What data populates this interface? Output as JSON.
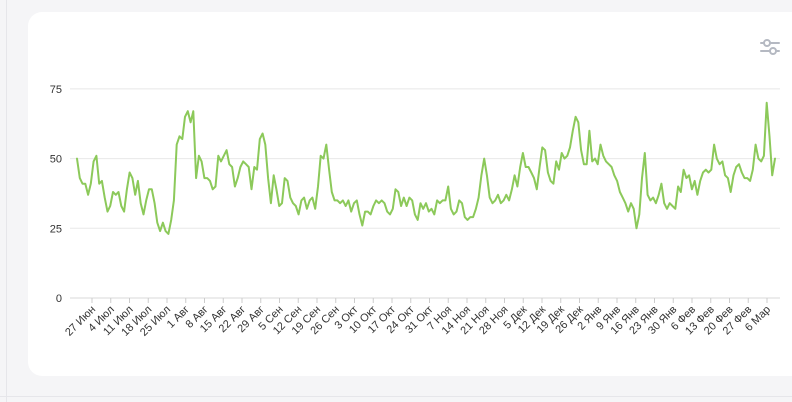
{
  "chart_data": {
    "type": "line",
    "title": "",
    "xlabel": "",
    "ylabel": "",
    "ylim": [
      0,
      85
    ],
    "y_ticks": [
      0,
      25,
      50,
      75
    ],
    "x_tick_labels": [
      "27 Июн",
      "4 Июл",
      "11 Июл",
      "18 Июл",
      "25 Июл",
      "1 Авг",
      "8 Авг",
      "15 Авг",
      "22 Авг",
      "29 Авг",
      "5 Сен",
      "12 Сен",
      "19 Сен",
      "26 Сен",
      "3 Окт",
      "10 Окт",
      "17 Окт",
      "24 Окт",
      "31 Окт",
      "7 Ноя",
      "14 Ноя",
      "21 Ноя",
      "28 Ноя",
      "5 Дек",
      "12 Дек",
      "19 Дек",
      "26 Дек",
      "2 Янв",
      "9 Янв",
      "16 Янв",
      "23 Янв",
      "30 Янв",
      "6 Фев",
      "13 Фев",
      "20 Фев",
      "27 Фев",
      "6 Мар"
    ],
    "grid": true,
    "line_color": "#8cc95a",
    "values": [
      50,
      43,
      41,
      41,
      37,
      41,
      49,
      51,
      41,
      42,
      36,
      31,
      33,
      38,
      37,
      38,
      33,
      31,
      39,
      45,
      43,
      37,
      42,
      34,
      30,
      35,
      39,
      39,
      34,
      27,
      24,
      27,
      24,
      23,
      28,
      35,
      55,
      58,
      57,
      65,
      67,
      63,
      67,
      43,
      51,
      49,
      43,
      43,
      42,
      39,
      40,
      51,
      49,
      51,
      53,
      48,
      47,
      40,
      43,
      47,
      49,
      48,
      47,
      39,
      47,
      46,
      57,
      59,
      55,
      43,
      34,
      44,
      39,
      33,
      34,
      43,
      42,
      36,
      34,
      33,
      30,
      35,
      36,
      32,
      35,
      36,
      32,
      40,
      51,
      50,
      55,
      46,
      38,
      35,
      35,
      34,
      35,
      33,
      35,
      31,
      34,
      35,
      30,
      26,
      31,
      31,
      30,
      33,
      35,
      34,
      35,
      34,
      31,
      30,
      32,
      39,
      38,
      33,
      36,
      33,
      36,
      35,
      30,
      28,
      34,
      32,
      34,
      31,
      32,
      30,
      35,
      34,
      35,
      35,
      40,
      32,
      30,
      31,
      35,
      34,
      29,
      28,
      29,
      29,
      32,
      36,
      44,
      50,
      44,
      36,
      34,
      35,
      37,
      34,
      35,
      37,
      35,
      39,
      44,
      40,
      47,
      52,
      47,
      47,
      45,
      43,
      39,
      47,
      54,
      53,
      45,
      42,
      41,
      49,
      46,
      52,
      50,
      51,
      54,
      60,
      65,
      63,
      53,
      48,
      48,
      60,
      49,
      50,
      48,
      55,
      51,
      49,
      48,
      47,
      44,
      42,
      38,
      36,
      34,
      31,
      34,
      32,
      25,
      30,
      43,
      52,
      37,
      35,
      36,
      34,
      37,
      41,
      34,
      32,
      34,
      33,
      32,
      40,
      38,
      46,
      43,
      44,
      39,
      42,
      37,
      42,
      45,
      46,
      45,
      46,
      55,
      50,
      48,
      49,
      44,
      43,
      38,
      44,
      47,
      48,
      45,
      43,
      43,
      42,
      46,
      55,
      50,
      49,
      51,
      70,
      58,
      44,
      50
    ]
  },
  "controls": {
    "settings_icon": "sliders-icon"
  }
}
